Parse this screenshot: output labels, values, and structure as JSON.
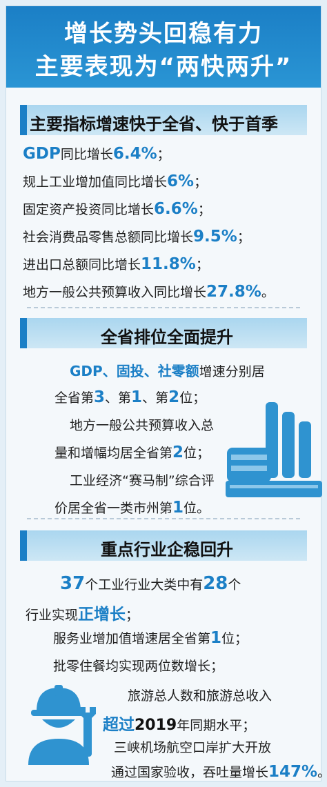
{
  "title": {
    "line1": "增长势头回稳有力",
    "line2": "主要表现为“两快两升”"
  },
  "section1": {
    "heading": "主要指标增速快于全省、快于首季",
    "items": [
      {
        "label": "GDP",
        "text": "同比增长",
        "value": "6.4%",
        "end": "；"
      },
      {
        "label": "",
        "text": "规上工业增加值同比增长",
        "value": "6%",
        "end": "；"
      },
      {
        "label": "",
        "text": "固定资产投资同比增长",
        "value": "6.6%",
        "end": "；"
      },
      {
        "label": "",
        "text": "社会消费品零售总额同比增长",
        "value": "9.5%",
        "end": "；"
      },
      {
        "label": "",
        "text": "进出口总额同比增长",
        "value": "11.8%",
        "end": "；"
      },
      {
        "label": "",
        "text": "地方一般公共预算收入同比增长",
        "value": "27.8%",
        "end": "。"
      }
    ]
  },
  "section2": {
    "heading": "全省排位全面提升",
    "l1": {
      "a": "GDP",
      "b": "、",
      "c": "固投",
      "d": "、",
      "e": "社零额",
      "f": "增速分别居"
    },
    "l2": {
      "a": "全省第",
      "b": "3",
      "c": "、第",
      "d": "1",
      "e": "、第",
      "f": "2",
      "g": "位；"
    },
    "l3": "地方一般公共预算收入总",
    "l4": {
      "a": "量和增幅均居全省第",
      "b": "2",
      "c": "位；"
    },
    "l5": "工业经济“赛马制”综合评",
    "l6": {
      "a": "价居全省一类市州第",
      "b": "1",
      "c": "位。"
    }
  },
  "section3": {
    "heading": "重点行业企稳回升",
    "l1": {
      "a": "37",
      "b": "个工业行业大类中有",
      "c": "28",
      "d": "个"
    },
    "l2": {
      "a": "行业实现",
      "b": "正增长",
      "c": "；"
    },
    "l3": {
      "a": "服务业增加值增速居全省第",
      "b": "1",
      "c": "位；"
    },
    "l4": "批零住餐均实现两位数增长；",
    "l5": "旅游总人数和旅游总收入",
    "l6": {
      "a": "超过",
      "b": "2019",
      "c": "年同期水平；"
    },
    "l7": "三峡机场航空口岸扩大开放",
    "l8": {
      "a": "通过国家验收，吞吐量增长",
      "b": "147%",
      "c": "。"
    }
  },
  "icons": {
    "factory": "factory-icon",
    "worker": "worker-wrench-icon"
  },
  "colors": {
    "accent": "#1b7fc6",
    "band": "#aad6ef",
    "background": "#e4eff7"
  }
}
